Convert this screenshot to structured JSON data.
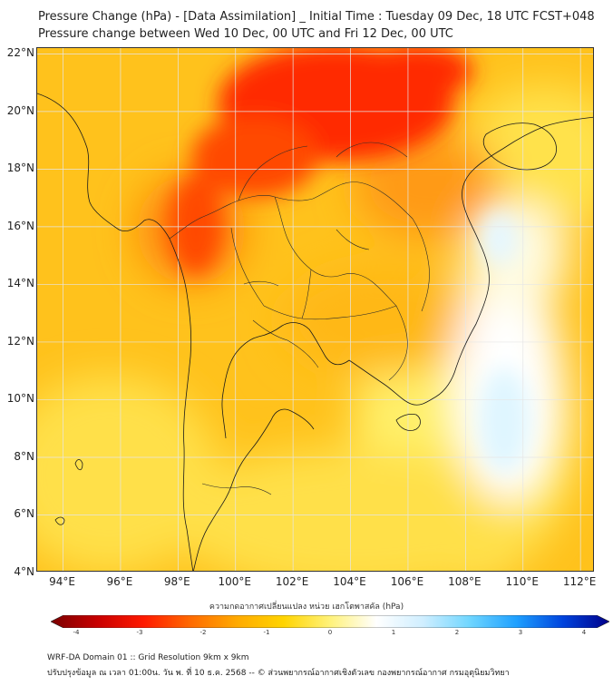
{
  "header": {
    "title": "Pressure Change (hPa) - [Data Assimilation] _ Initial Time : Tuesday 09 Dec, 18 UTC FCST+048",
    "subtitle": "Pressure change between Wed 10 Dec, 00 UTC and Fri 12 Dec, 00 UTC"
  },
  "map": {
    "lat_labels": [
      "22°N",
      "20°N",
      "18°N",
      "16°N",
      "14°N",
      "12°N",
      "10°N",
      "8°N",
      "6°N",
      "4°N"
    ],
    "lon_labels": [
      "94°E",
      "96°E",
      "98°E",
      "100°E",
      "102°E",
      "104°E",
      "106°E",
      "108°E",
      "110°E",
      "112°E"
    ],
    "lat_range": [
      4,
      22.2
    ],
    "lon_range": [
      93.1,
      112.5
    ]
  },
  "colorbar": {
    "title": "ความกดอากาศเปลี่ยนแปลง หน่วย เฮกโตพาสคัล (hPa)",
    "tick_labels": [
      "-4",
      "-3",
      "-2",
      "-1",
      "0",
      "1",
      "2",
      "3",
      "4"
    ],
    "range": [
      -4.4,
      4.4
    ],
    "colors": [
      "#7a0000",
      "#c80000",
      "#ff1a00",
      "#ff6a00",
      "#ffaa00",
      "#ffd400",
      "#fff27a",
      "#ffffff",
      "#cfeeff",
      "#6fd6ff",
      "#1ea0ff",
      "#0044dd",
      "#00008a"
    ]
  },
  "footer": {
    "line1": "WRF-DA Domain 01 :: Grid Resolution 9km x 9km",
    "line2": "ปรับปรุงข้อมูล ณ เวลา 01:00น. วัน พ. ที่ 10 ธ.ค. 2568 -- © ส่วนพยากรณ์อากาศเชิงตัวเลข กองพยากรณ์อากาศ กรมอุตุนิยมวิทยา"
  }
}
